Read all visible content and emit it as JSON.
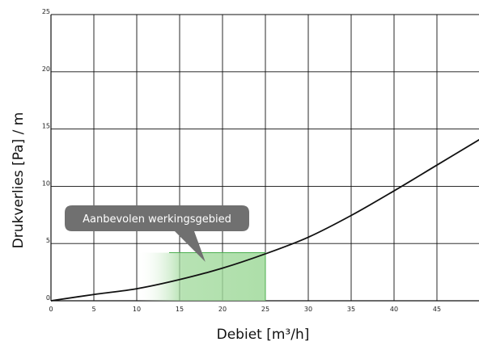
{
  "chart_data": {
    "type": "line",
    "xlabel": "Debiet [m³/h]",
    "ylabel": "Drukverlies [Pa] / m",
    "xlim": [
      0,
      50
    ],
    "ylim": [
      0,
      25
    ],
    "x_ticks": [
      0,
      5,
      10,
      15,
      20,
      25,
      30,
      35,
      40,
      45
    ],
    "y_ticks": [
      0,
      5,
      10,
      15,
      20,
      25
    ],
    "grid": true,
    "series": [
      {
        "color": "#111111",
        "x": [
          0,
          5,
          10,
          15,
          20,
          25,
          30,
          35,
          40,
          45,
          50
        ],
        "y": [
          0,
          0.55,
          1.05,
          1.85,
          2.85,
          4.1,
          5.55,
          7.45,
          9.6,
          11.85,
          14.1
        ]
      }
    ],
    "highlight_region": {
      "x_range": [
        10,
        25
      ],
      "y_range": [
        0,
        4.2
      ],
      "color": "#9fd99a"
    },
    "annotation": {
      "text": "Aanbevolen werkingsgebied",
      "pointer": {
        "x": 18,
        "y": 3.4
      },
      "background": "#707070"
    }
  }
}
